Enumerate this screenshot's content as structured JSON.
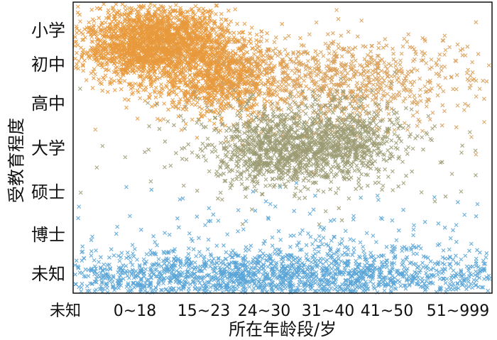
{
  "chart_data": {
    "type": "scatter",
    "marker": "x",
    "grid": false,
    "xlabel": "所在年龄段/岁",
    "ylabel": "受教育程度",
    "x_categories": [
      "未知",
      "0~18",
      "15~23",
      "24~30",
      "31~40",
      "41~50",
      "51~999"
    ],
    "y_categories": [
      "未知",
      "博士",
      "硕士",
      "大学",
      "高中",
      "初中",
      "小学"
    ],
    "colors": {
      "orange": "#e8993c",
      "olive": "#9b9b73",
      "blue": "#5aa5d7"
    },
    "clusters": [
      {
        "color": "#5aa5d7",
        "x_center": 3.0,
        "y_center": -0.1,
        "x_spread": 2.6,
        "y_spread": 0.35,
        "count": 1600
      },
      {
        "color": "#5aa5d7",
        "x_center": 3.5,
        "y_center": 0.7,
        "x_spread": 2.4,
        "y_spread": 0.6,
        "count": 200
      },
      {
        "color": "#e8993c",
        "x_center": 1.3,
        "y_center": 5.6,
        "x_spread": 0.55,
        "y_spread": 0.55,
        "count": 2200
      },
      {
        "color": "#e8993c",
        "x_center": 2.3,
        "y_center": 4.6,
        "x_spread": 0.5,
        "y_spread": 0.5,
        "count": 900
      },
      {
        "color": "#d9a05a",
        "x_center": 4.2,
        "y_center": 4.6,
        "x_spread": 1.2,
        "y_spread": 0.6,
        "count": 900
      },
      {
        "color": "#9b9b73",
        "x_center": 3.3,
        "y_center": 3.0,
        "x_spread": 0.55,
        "y_spread": 0.45,
        "count": 900
      },
      {
        "color": "#9b9b73",
        "x_center": 4.3,
        "y_center": 3.2,
        "x_spread": 0.45,
        "y_spread": 0.4,
        "count": 450
      },
      {
        "color": "#a09c74",
        "x_center": 3.8,
        "y_center": 3.0,
        "x_spread": 1.3,
        "y_spread": 0.6,
        "count": 350
      }
    ]
  }
}
